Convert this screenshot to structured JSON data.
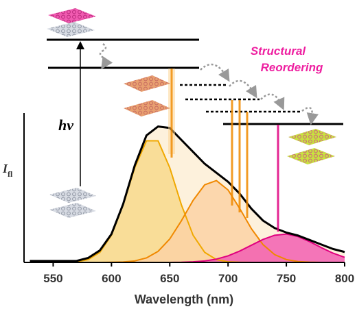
{
  "chart_data": {
    "type": "area",
    "xlabel": "Wavelength (nm)",
    "ylabel": "I",
    "ylabel_sub": "fl",
    "annotations": {
      "excitation": "hν",
      "reordering": [
        "Structural",
        "Reordering"
      ]
    },
    "xlim": [
      525,
      800
    ],
    "xticks": [
      550,
      600,
      650,
      700,
      750,
      800
    ],
    "ylim": [
      0,
      1
    ],
    "x": [
      530,
      540,
      550,
      560,
      570,
      580,
      590,
      600,
      610,
      620,
      630,
      640,
      650,
      660,
      670,
      680,
      690,
      700,
      710,
      720,
      730,
      740,
      750,
      760,
      770,
      780,
      790,
      800
    ],
    "series": [
      {
        "color": "#000000",
        "fill": "#fdf1dc",
        "values": [
          0.01,
          0.01,
          0.01,
          0.01,
          0.01,
          0.03,
          0.08,
          0.19,
          0.39,
          0.65,
          0.85,
          0.91,
          0.9,
          0.82,
          0.74,
          0.66,
          0.6,
          0.54,
          0.46,
          0.36,
          0.28,
          0.23,
          0.2,
          0.18,
          0.15,
          0.12,
          0.09,
          0.07
        ]
      },
      {
        "color": "#f0a800",
        "fill": "#f8d98c",
        "values": [
          0,
          0,
          0,
          0.001,
          0.004,
          0.019,
          0.067,
          0.182,
          0.385,
          0.634,
          0.814,
          0.814,
          0.634,
          0.385,
          0.182,
          0.067,
          0.019,
          0.004,
          0.001,
          0,
          0,
          0,
          0,
          0,
          0,
          0,
          0,
          0
        ]
      },
      {
        "color": "#f08800",
        "fill": "#fbd2a4",
        "values": [
          0,
          0,
          0,
          0,
          0,
          0,
          0,
          0.001,
          0.003,
          0.01,
          0.03,
          0.074,
          0.157,
          0.279,
          0.415,
          0.52,
          0.548,
          0.485,
          0.361,
          0.226,
          0.119,
          0.052,
          0.019,
          0.006,
          0.002,
          0,
          0,
          0
        ]
      },
      {
        "color": "#e0007f",
        "fill": "#f25fb2",
        "values": [
          0,
          0,
          0,
          0,
          0,
          0,
          0,
          0,
          0,
          0,
          0,
          0,
          0,
          0.001,
          0.004,
          0.01,
          0.022,
          0.044,
          0.076,
          0.115,
          0.154,
          0.182,
          0.19,
          0.173,
          0.139,
          0.099,
          0.062,
          0.034
        ]
      }
    ]
  }
}
